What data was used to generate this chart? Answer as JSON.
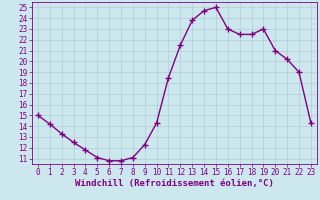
{
  "x": [
    0,
    1,
    2,
    3,
    4,
    5,
    6,
    7,
    8,
    9,
    10,
    11,
    12,
    13,
    14,
    15,
    16,
    17,
    18,
    19,
    20,
    21,
    22,
    23
  ],
  "y": [
    15,
    14.2,
    13.3,
    12.5,
    11.8,
    11.1,
    10.8,
    10.8,
    11.1,
    12.3,
    14.3,
    18.5,
    21.5,
    23.8,
    24.7,
    25.0,
    23.0,
    22.5,
    22.5,
    23.0,
    21.0,
    20.2,
    19.0,
    14.3
  ],
  "line_color": "#800080",
  "marker": "+",
  "marker_size": 4,
  "marker_linewidth": 1.0,
  "xlabel": "Windchill (Refroidissement éolien,°C)",
  "xlabel_fontsize": 6.5,
  "xlim": [
    -0.5,
    23.5
  ],
  "ylim": [
    10.5,
    25.5
  ],
  "yticks": [
    11,
    12,
    13,
    14,
    15,
    16,
    17,
    18,
    19,
    20,
    21,
    22,
    23,
    24,
    25
  ],
  "xticks": [
    0,
    1,
    2,
    3,
    4,
    5,
    6,
    7,
    8,
    9,
    10,
    11,
    12,
    13,
    14,
    15,
    16,
    17,
    18,
    19,
    20,
    21,
    22,
    23
  ],
  "background_color": "#cce8ee",
  "grid_color": "#b0cdd4",
  "tick_label_fontsize": 5.5,
  "line_width": 1.0
}
